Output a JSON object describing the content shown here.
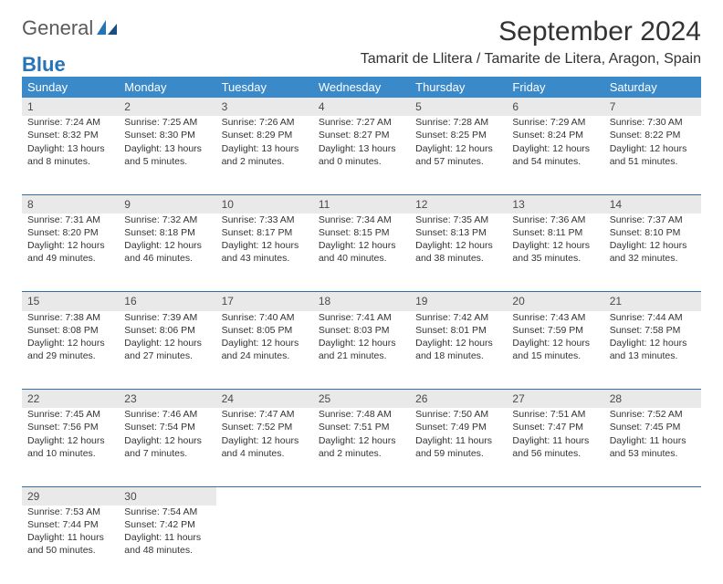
{
  "brand": {
    "word1": "General",
    "word2": "Blue"
  },
  "title": "September 2024",
  "subtitle": "Tamarit de Llitera / Tamarite de Litera, Aragon, Spain",
  "colors": {
    "header_bg": "#3a89c9",
    "header_text": "#ffffff",
    "daynum_bg": "#e9e9e9",
    "rule": "#2f6fa8",
    "brand_blue": "#2673b8",
    "brand_gray": "#5a5a5a",
    "body_text": "#333333"
  },
  "days_of_week": [
    "Sunday",
    "Monday",
    "Tuesday",
    "Wednesday",
    "Thursday",
    "Friday",
    "Saturday"
  ],
  "weeks": [
    [
      {
        "n": "1",
        "sunrise": "7:24 AM",
        "sunset": "8:32 PM",
        "daylight": "13 hours and 8 minutes."
      },
      {
        "n": "2",
        "sunrise": "7:25 AM",
        "sunset": "8:30 PM",
        "daylight": "13 hours and 5 minutes."
      },
      {
        "n": "3",
        "sunrise": "7:26 AM",
        "sunset": "8:29 PM",
        "daylight": "13 hours and 2 minutes."
      },
      {
        "n": "4",
        "sunrise": "7:27 AM",
        "sunset": "8:27 PM",
        "daylight": "13 hours and 0 minutes."
      },
      {
        "n": "5",
        "sunrise": "7:28 AM",
        "sunset": "8:25 PM",
        "daylight": "12 hours and 57 minutes."
      },
      {
        "n": "6",
        "sunrise": "7:29 AM",
        "sunset": "8:24 PM",
        "daylight": "12 hours and 54 minutes."
      },
      {
        "n": "7",
        "sunrise": "7:30 AM",
        "sunset": "8:22 PM",
        "daylight": "12 hours and 51 minutes."
      }
    ],
    [
      {
        "n": "8",
        "sunrise": "7:31 AM",
        "sunset": "8:20 PM",
        "daylight": "12 hours and 49 minutes."
      },
      {
        "n": "9",
        "sunrise": "7:32 AM",
        "sunset": "8:18 PM",
        "daylight": "12 hours and 46 minutes."
      },
      {
        "n": "10",
        "sunrise": "7:33 AM",
        "sunset": "8:17 PM",
        "daylight": "12 hours and 43 minutes."
      },
      {
        "n": "11",
        "sunrise": "7:34 AM",
        "sunset": "8:15 PM",
        "daylight": "12 hours and 40 minutes."
      },
      {
        "n": "12",
        "sunrise": "7:35 AM",
        "sunset": "8:13 PM",
        "daylight": "12 hours and 38 minutes."
      },
      {
        "n": "13",
        "sunrise": "7:36 AM",
        "sunset": "8:11 PM",
        "daylight": "12 hours and 35 minutes."
      },
      {
        "n": "14",
        "sunrise": "7:37 AM",
        "sunset": "8:10 PM",
        "daylight": "12 hours and 32 minutes."
      }
    ],
    [
      {
        "n": "15",
        "sunrise": "7:38 AM",
        "sunset": "8:08 PM",
        "daylight": "12 hours and 29 minutes."
      },
      {
        "n": "16",
        "sunrise": "7:39 AM",
        "sunset": "8:06 PM",
        "daylight": "12 hours and 27 minutes."
      },
      {
        "n": "17",
        "sunrise": "7:40 AM",
        "sunset": "8:05 PM",
        "daylight": "12 hours and 24 minutes."
      },
      {
        "n": "18",
        "sunrise": "7:41 AM",
        "sunset": "8:03 PM",
        "daylight": "12 hours and 21 minutes."
      },
      {
        "n": "19",
        "sunrise": "7:42 AM",
        "sunset": "8:01 PM",
        "daylight": "12 hours and 18 minutes."
      },
      {
        "n": "20",
        "sunrise": "7:43 AM",
        "sunset": "7:59 PM",
        "daylight": "12 hours and 15 minutes."
      },
      {
        "n": "21",
        "sunrise": "7:44 AM",
        "sunset": "7:58 PM",
        "daylight": "12 hours and 13 minutes."
      }
    ],
    [
      {
        "n": "22",
        "sunrise": "7:45 AM",
        "sunset": "7:56 PM",
        "daylight": "12 hours and 10 minutes."
      },
      {
        "n": "23",
        "sunrise": "7:46 AM",
        "sunset": "7:54 PM",
        "daylight": "12 hours and 7 minutes."
      },
      {
        "n": "24",
        "sunrise": "7:47 AM",
        "sunset": "7:52 PM",
        "daylight": "12 hours and 4 minutes."
      },
      {
        "n": "25",
        "sunrise": "7:48 AM",
        "sunset": "7:51 PM",
        "daylight": "12 hours and 2 minutes."
      },
      {
        "n": "26",
        "sunrise": "7:50 AM",
        "sunset": "7:49 PM",
        "daylight": "11 hours and 59 minutes."
      },
      {
        "n": "27",
        "sunrise": "7:51 AM",
        "sunset": "7:47 PM",
        "daylight": "11 hours and 56 minutes."
      },
      {
        "n": "28",
        "sunrise": "7:52 AM",
        "sunset": "7:45 PM",
        "daylight": "11 hours and 53 minutes."
      }
    ],
    [
      {
        "n": "29",
        "sunrise": "7:53 AM",
        "sunset": "7:44 PM",
        "daylight": "11 hours and 50 minutes."
      },
      {
        "n": "30",
        "sunrise": "7:54 AM",
        "sunset": "7:42 PM",
        "daylight": "11 hours and 48 minutes."
      },
      null,
      null,
      null,
      null,
      null
    ]
  ],
  "labels": {
    "sunrise": "Sunrise: ",
    "sunset": "Sunset: ",
    "daylight": "Daylight: "
  }
}
